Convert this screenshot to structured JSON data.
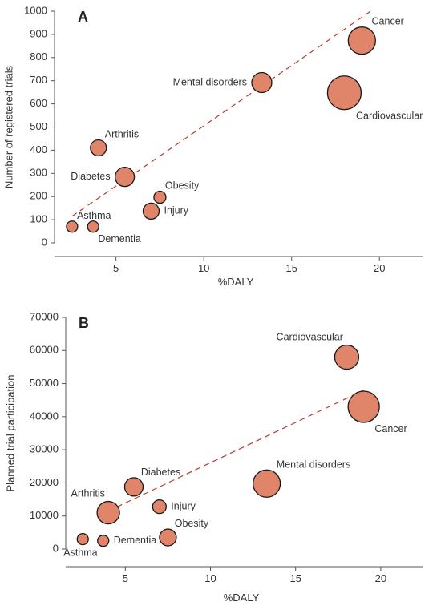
{
  "colors": {
    "bubble": "#e0846a",
    "trend": "#c0392b",
    "axis": "#555555"
  },
  "chart_data": [
    {
      "type": "scatter",
      "panel_label": "A",
      "xlabel": "%DALY",
      "ylabel": "Number of registered trials",
      "xlim": [
        1.5,
        22.5
      ],
      "ylim": [
        0,
        1000
      ],
      "xticks": [
        5,
        10,
        15,
        20
      ],
      "yticks": [
        0,
        100,
        200,
        300,
        400,
        500,
        600,
        700,
        800,
        900,
        1000
      ],
      "grid": false,
      "points": [
        {
          "label": "Asthma",
          "x": 2.5,
          "y": 70,
          "size": 7,
          "label_pos": "above-right"
        },
        {
          "label": "Dementia",
          "x": 3.7,
          "y": 70,
          "size": 7,
          "label_pos": "below-right"
        },
        {
          "label": "Arthritis",
          "x": 4.0,
          "y": 410,
          "size": 10,
          "label_pos": "above-right"
        },
        {
          "label": "Diabetes",
          "x": 5.5,
          "y": 285,
          "size": 12,
          "label_pos": "left"
        },
        {
          "label": "Obesity",
          "x": 7.5,
          "y": 197,
          "size": 7.5,
          "label_pos": "above-right"
        },
        {
          "label": "Injury",
          "x": 7.0,
          "y": 137,
          "size": 10,
          "label_pos": "right"
        },
        {
          "label": "Mental disorders",
          "x": 13.3,
          "y": 692,
          "size": 12.5,
          "label_pos": "left"
        },
        {
          "label": "Cancer",
          "x": 19.0,
          "y": 873,
          "size": 17,
          "label_pos": "above-right"
        },
        {
          "label": "Cardiovascular",
          "x": 18.0,
          "y": 648,
          "size": 21,
          "label_pos": "below-right"
        }
      ],
      "trendline": {
        "x": [
          2.5,
          19.5
        ],
        "y": [
          115,
          1000
        ]
      }
    },
    {
      "type": "scatter",
      "panel_label": "B",
      "xlabel": "%DALY",
      "ylabel": "Planned trial participation",
      "xlim": [
        1.5,
        22.5
      ],
      "ylim": [
        0,
        70000
      ],
      "xticks": [
        5,
        10,
        15,
        20
      ],
      "yticks": [
        0,
        10000,
        20000,
        30000,
        40000,
        50000,
        60000,
        70000
      ],
      "grid": false,
      "points": [
        {
          "label": "Asthma",
          "x": 2.5,
          "y": 3000,
          "size": 7,
          "label_pos": "below-left"
        },
        {
          "label": "Dementia",
          "x": 3.7,
          "y": 2500,
          "size": 7,
          "label_pos": "right"
        },
        {
          "label": "Arthritis",
          "x": 4.0,
          "y": 11000,
          "size": 14,
          "label_pos": "above-left"
        },
        {
          "label": "Diabetes",
          "x": 5.5,
          "y": 18800,
          "size": 11.5,
          "label_pos": "above-right"
        },
        {
          "label": "Injury",
          "x": 7.0,
          "y": 12800,
          "size": 8.5,
          "label_pos": "right"
        },
        {
          "label": "Obesity",
          "x": 7.5,
          "y": 3500,
          "size": 10.5,
          "label_pos": "above-right"
        },
        {
          "label": "Mental disorders",
          "x": 13.3,
          "y": 19800,
          "size": 17,
          "label_pos": "above-right"
        },
        {
          "label": "Cardiovascular",
          "x": 18.0,
          "y": 58000,
          "size": 15,
          "label_pos": "above-left"
        },
        {
          "label": "Cancer",
          "x": 19.0,
          "y": 43000,
          "size": 19.5,
          "label_pos": "below-right"
        }
      ],
      "trendline": {
        "x": [
          4.0,
          19.0
        ],
        "y": [
          11500,
          48000
        ]
      }
    }
  ]
}
